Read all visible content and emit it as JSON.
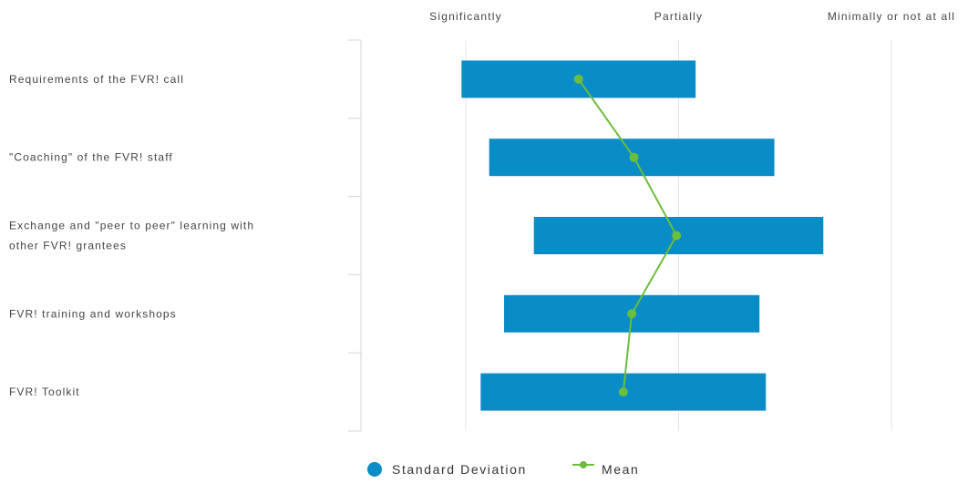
{
  "chart_data": {
    "type": "bar",
    "orientation": "horizontal",
    "title": "",
    "xlabel": "",
    "ylabel": "",
    "x_ticks": [
      {
        "value": 1,
        "label": "Significantly"
      },
      {
        "value": 2,
        "label": "Partially"
      },
      {
        "value": 3,
        "label": "Minimally or not at all"
      }
    ],
    "xlim": [
      0.5,
      3.35
    ],
    "categories": [
      [
        "Requirements of the FVR! call"
      ],
      [
        "\"Coaching\" of the FVR! staff"
      ],
      [
        "Exchange and \"peer to peer\" learning with",
        "other FVR! grantees"
      ],
      [
        "FVR! training and workshops"
      ],
      [
        "FVR! Toolkit"
      ]
    ],
    "series": [
      {
        "name": "Standard Deviation",
        "kind": "range-bar",
        "color": "#0A8CC6",
        "ranges": [
          [
            0.98,
            2.08
          ],
          [
            1.11,
            2.45
          ],
          [
            1.32,
            2.68
          ],
          [
            1.18,
            2.38
          ],
          [
            1.07,
            2.41
          ]
        ]
      },
      {
        "name": "Mean",
        "kind": "line",
        "color": "#6BBE3C",
        "values": [
          1.53,
          1.79,
          1.99,
          1.78,
          1.74
        ]
      }
    ],
    "grid": true,
    "legend_position": "bottom"
  }
}
